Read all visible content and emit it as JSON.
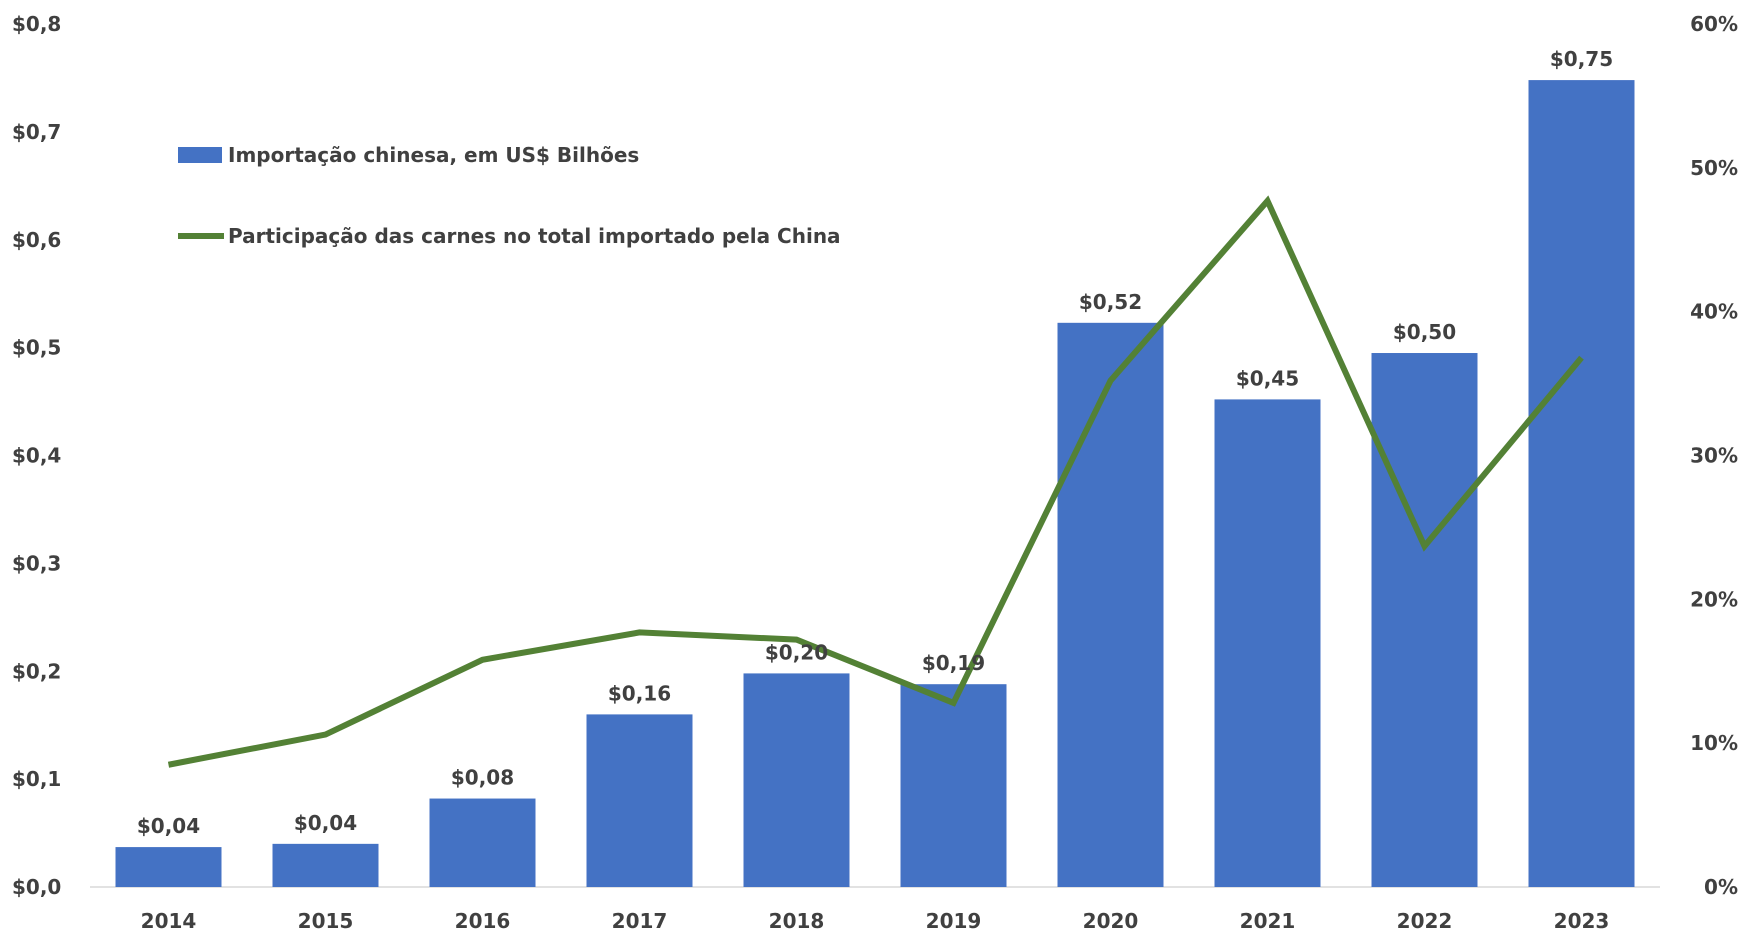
{
  "chart_data": {
    "type": "bar",
    "categories": [
      "2014",
      "2015",
      "2016",
      "2017",
      "2018",
      "2019",
      "2020",
      "2021",
      "2022",
      "2023"
    ],
    "series": [
      {
        "name": "Importação chinesa, em US$ Bilhões",
        "type": "bar",
        "axis": "left",
        "color": "#4472C4",
        "values": [
          0.037,
          0.04,
          0.082,
          0.16,
          0.198,
          0.188,
          0.523,
          0.452,
          0.495,
          0.748
        ],
        "data_labels": [
          "$0,04",
          "$0,04",
          "$0,08",
          "$0,16",
          "$0,20",
          "$0,19",
          "$0,52",
          "$0,45",
          "$0,50",
          "$0,75"
        ]
      },
      {
        "name": "Participação das carnes no total importado pela China",
        "type": "line",
        "axis": "right",
        "color": "#538135",
        "values": [
          8.5,
          10.6,
          15.8,
          17.7,
          17.2,
          12.8,
          35.2,
          47.7,
          23.7,
          36.8
        ]
      }
    ],
    "y_left": {
      "ylim": [
        0,
        0.8
      ],
      "ticks": [
        0,
        0.1,
        0.2,
        0.3,
        0.4,
        0.5,
        0.6,
        0.7,
        0.8
      ],
      "tick_labels": [
        "$0,0",
        "$0,1",
        "$0,2",
        "$0,3",
        "$0,4",
        "$0,5",
        "$0,6",
        "$0,7",
        "$0,8"
      ]
    },
    "y_right": {
      "ylim": [
        0,
        60
      ],
      "ticks": [
        0,
        10,
        20,
        30,
        40,
        50,
        60
      ],
      "tick_labels": [
        "0%",
        "10%",
        "20%",
        "30%",
        "40%",
        "50%",
        "60%"
      ]
    },
    "grid": false,
    "legend_position": "top-left"
  }
}
